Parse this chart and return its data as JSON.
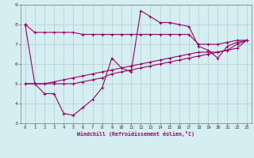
{
  "xlabel": "Windchill (Refroidissement éolien,°C)",
  "bg_color": "#d5eef2",
  "grid_color": "#b0cdd4",
  "line_color": "#990066",
  "xlim": [
    -0.5,
    23.5
  ],
  "ylim": [
    3,
    9
  ],
  "xticks": [
    0,
    1,
    2,
    3,
    4,
    5,
    6,
    7,
    8,
    9,
    10,
    11,
    12,
    13,
    14,
    15,
    16,
    17,
    18,
    19,
    20,
    21,
    22,
    23
  ],
  "yticks": [
    3,
    4,
    5,
    6,
    7,
    8,
    9
  ],
  "line1_x": [
    0,
    1,
    2,
    3,
    4,
    5,
    6,
    7,
    8,
    9,
    10,
    11,
    12,
    13,
    14,
    15,
    16,
    17,
    18,
    19,
    20,
    21,
    22,
    23
  ],
  "line1_y": [
    8.0,
    7.6,
    7.6,
    7.6,
    7.6,
    7.6,
    7.5,
    7.5,
    7.5,
    7.5,
    7.5,
    7.5,
    7.5,
    7.5,
    7.5,
    7.5,
    7.5,
    7.5,
    7.0,
    7.0,
    7.0,
    7.1,
    7.2,
    7.2
  ],
  "line2_x": [
    0,
    1,
    2,
    3,
    4,
    5,
    6,
    7,
    8,
    9,
    10,
    11,
    12,
    13,
    14,
    15,
    16,
    17,
    18,
    19,
    20,
    21,
    22,
    23
  ],
  "line2_y": [
    8.0,
    5.0,
    4.5,
    4.5,
    3.5,
    3.4,
    3.8,
    4.2,
    4.8,
    6.3,
    5.8,
    5.6,
    8.7,
    8.4,
    8.1,
    8.1,
    8.0,
    7.9,
    6.9,
    6.7,
    6.3,
    6.9,
    7.1,
    7.2
  ],
  "line3_x": [
    0,
    1,
    2,
    3,
    4,
    5,
    6,
    7,
    8,
    9,
    10,
    11,
    12,
    13,
    14,
    15,
    16,
    17,
    18,
    19,
    20,
    21,
    22,
    23
  ],
  "line3_y": [
    5.0,
    5.0,
    5.0,
    5.0,
    5.0,
    5.0,
    5.1,
    5.2,
    5.3,
    5.5,
    5.6,
    5.7,
    5.8,
    5.9,
    6.0,
    6.1,
    6.2,
    6.3,
    6.4,
    6.5,
    6.6,
    6.7,
    6.8,
    7.2
  ],
  "line4_x": [
    0,
    1,
    2,
    3,
    4,
    5,
    6,
    7,
    8,
    9,
    10,
    11,
    12,
    13,
    14,
    15,
    16,
    17,
    18,
    19,
    20,
    21,
    22,
    23
  ],
  "line4_y": [
    5.0,
    5.0,
    5.0,
    5.1,
    5.2,
    5.3,
    5.4,
    5.5,
    5.6,
    5.7,
    5.8,
    5.9,
    6.0,
    6.1,
    6.2,
    6.3,
    6.4,
    6.5,
    6.6,
    6.6,
    6.6,
    6.7,
    7.0,
    7.2
  ]
}
